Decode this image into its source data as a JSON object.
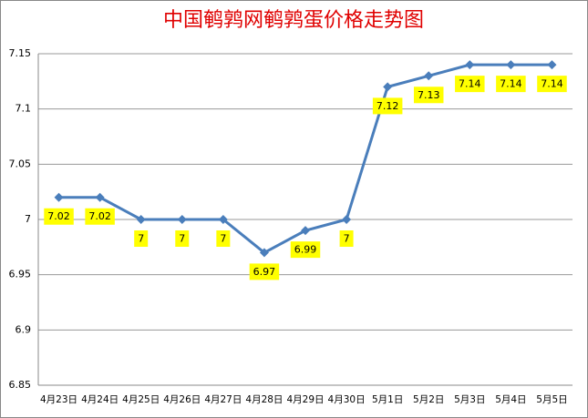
{
  "chart_data": {
    "type": "line",
    "title": "中国鹌鹑网鹌鹑蛋价格走势图",
    "categories": [
      "4月23日",
      "4月24日",
      "4月25日",
      "4月26日",
      "4月27日",
      "4月28日",
      "4月29日",
      "4月30日",
      "5月1日",
      "5月2日",
      "5月3日",
      "5月4日",
      "5月5日"
    ],
    "values": [
      7.02,
      7.02,
      7,
      7,
      7,
      6.97,
      6.99,
      7,
      7.12,
      7.13,
      7.14,
      7.14,
      7.14
    ],
    "color": "#4a7ebb",
    "ylim": [
      6.85,
      7.15
    ],
    "yticks": [
      6.85,
      6.9,
      6.95,
      7,
      7.05,
      7.1,
      7.15
    ],
    "grid": true
  }
}
